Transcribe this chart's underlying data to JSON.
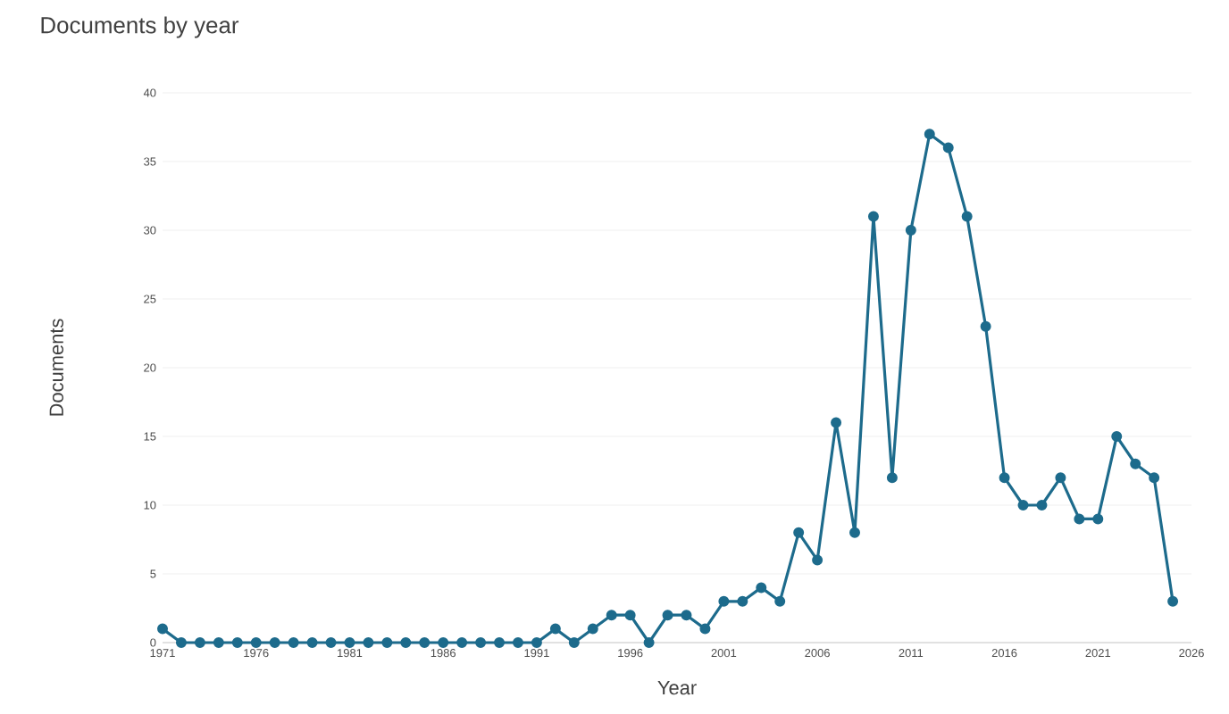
{
  "chart_data": {
    "type": "line",
    "title": "Documents by year",
    "xlabel": "Year",
    "ylabel": "Documents",
    "x": [
      1971,
      1972,
      1973,
      1974,
      1975,
      1976,
      1977,
      1978,
      1979,
      1980,
      1981,
      1982,
      1983,
      1984,
      1985,
      1986,
      1987,
      1988,
      1989,
      1990,
      1991,
      1992,
      1993,
      1994,
      1995,
      1996,
      1997,
      1998,
      1999,
      2000,
      2001,
      2002,
      2003,
      2004,
      2005,
      2006,
      2007,
      2008,
      2009,
      2010,
      2011,
      2012,
      2013,
      2014,
      2015,
      2016,
      2017,
      2018,
      2019,
      2020,
      2021,
      2022,
      2023,
      2024,
      2025
    ],
    "values": [
      1,
      0,
      0,
      0,
      0,
      0,
      0,
      0,
      0,
      0,
      0,
      0,
      0,
      0,
      0,
      0,
      0,
      0,
      0,
      0,
      0,
      1,
      0,
      1,
      2,
      2,
      0,
      2,
      2,
      1,
      3,
      3,
      4,
      3,
      8,
      6,
      16,
      8,
      31,
      12,
      30,
      37,
      36,
      31,
      23,
      12,
      10,
      10,
      12,
      9,
      9,
      15,
      13,
      12,
      3
    ],
    "color": "#1d6b8c",
    "xlim": [
      1971,
      2026
    ],
    "xticks": [
      1971,
      1976,
      1981,
      1986,
      1991,
      1996,
      2001,
      2006,
      2011,
      2016,
      2021,
      2026
    ],
    "ylim": [
      0,
      40
    ],
    "yticks": [
      0,
      5,
      10,
      15,
      20,
      25,
      30,
      35,
      40
    ],
    "grid": "y",
    "marker": "circle",
    "line_style": "solid"
  }
}
